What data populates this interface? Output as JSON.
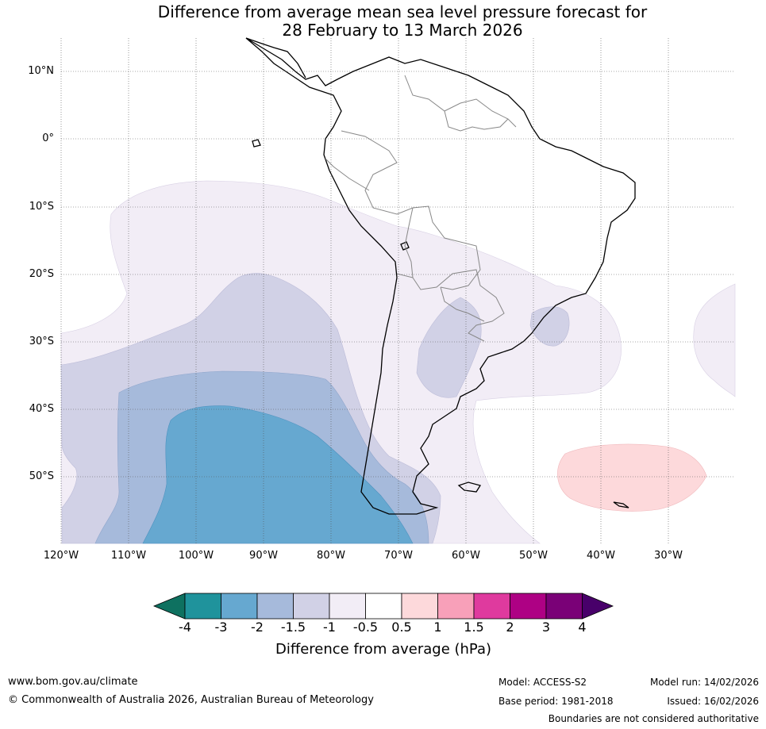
{
  "title": {
    "line1": "Difference from average mean sea level pressure forecast for",
    "line2": "28 February to 13 March 2026"
  },
  "latitude_labels": [
    "10°N",
    "0°",
    "10°S",
    "20°S",
    "30°S",
    "40°S",
    "50°S"
  ],
  "longitude_labels": [
    "120°W",
    "110°W",
    "100°W",
    "90°W",
    "80°W",
    "70°W",
    "60°W",
    "50°W",
    "40°W",
    "30°W"
  ],
  "colorbar": {
    "title": "Difference from average (hPa)",
    "labels": [
      "-4",
      "-3",
      "-2",
      "-1.5",
      "-1",
      "-0.5",
      "0.5",
      "1",
      "1.5",
      "2",
      "3",
      "4"
    ],
    "colors": [
      "#0e7160",
      "#1f939c",
      "#66a8d0",
      "#a6badb",
      "#d1d1e6",
      "#f2edf6",
      "#ffffff",
      "#fdd9db",
      "#f8a0b9",
      "#df3a9e",
      "#ae0184",
      "#7a0177",
      "#48006a"
    ]
  },
  "footer": {
    "website": "www.bom.gov.au/climate",
    "copyright": "© Commonwealth of Australia 2026, Australian Bureau of Meteorology",
    "model": "Model: ACCESS-S2",
    "base_period": "Base period: 1981-2018",
    "model_run": "Model run: 14/02/2026",
    "issued": "Issued: 16/02/2026",
    "disclaimer": "Boundaries are not considered authoritative"
  }
}
